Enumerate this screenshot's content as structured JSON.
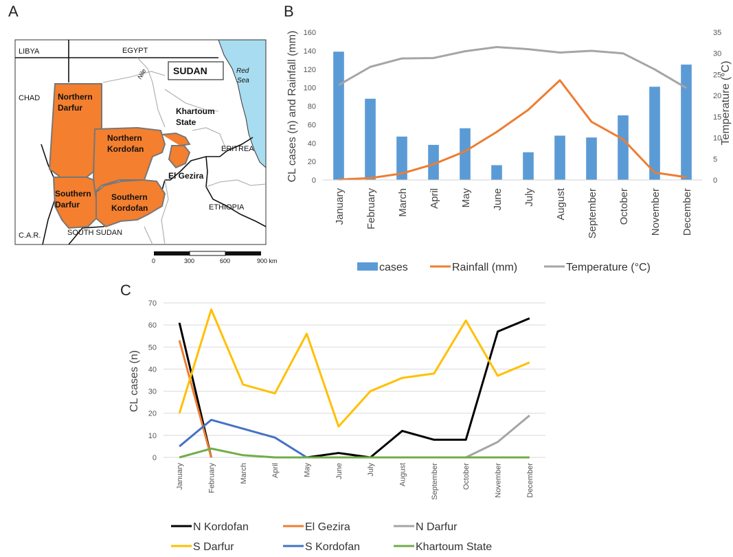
{
  "panels": {
    "a": "A",
    "b": "B",
    "c": "C"
  },
  "map": {
    "countries": {
      "libya": "LIBYA",
      "egypt": "EGYPT",
      "chad": "CHAD",
      "eritrea": "ERITREA",
      "ethiopia": "ETHIOPIA",
      "car": "C.A.R.",
      "south_sudan": "SOUTH SUDAN"
    },
    "sudan_label": "SUDAN",
    "red_sea_1": "Red",
    "red_sea_2": "Sea",
    "nile": "Nile",
    "regions": {
      "n_darfur_1": "Northern",
      "n_darfur_2": "Darfur",
      "n_kordofan_1": "Northern",
      "n_kordofan_2": "Kordofan",
      "s_darfur_1": "Southern",
      "s_darfur_2": "Darfur",
      "s_kordofan_1": "Southern",
      "s_kordofan_2": "Kordofan",
      "khartoum_1": "Khartoum",
      "khartoum_2": "State",
      "el_gezira": "El Gezira"
    },
    "scale": {
      "t0": "0",
      "t1": "300",
      "t2": "600",
      "t3": "900 km"
    },
    "colors": {
      "region": "#f47f2e",
      "sea": "#a8dcf0"
    }
  },
  "chart_data": [
    {
      "type": "bar+line",
      "categories": [
        "January",
        "February",
        "March",
        "April",
        "May",
        "June",
        "July",
        "August",
        "September",
        "October",
        "November",
        "December"
      ],
      "series": [
        {
          "name": "cases",
          "type": "bar",
          "axis": "left",
          "color": "#5b9bd5",
          "values": [
            139,
            88,
            47,
            38,
            56,
            16,
            30,
            48,
            46,
            70,
            101,
            125
          ]
        },
        {
          "name": "Rainfall (mm)",
          "type": "line",
          "axis": "left",
          "color": "#ed7d31",
          "values": [
            0.5,
            2,
            7,
            17,
            31,
            52,
            76,
            108,
            63,
            44,
            8,
            3
          ]
        },
        {
          "name": "Temperature (°C)",
          "type": "line",
          "axis": "right",
          "color": "#a5a5a5",
          "values": [
            22.5,
            26.8,
            28.8,
            28.9,
            30.5,
            31.5,
            31,
            30.2,
            30.6,
            30,
            26.2,
            21.8
          ]
        }
      ],
      "ylabel": "CL cases (n) and Rainfall (mm)",
      "y2label": "Temperature (°C)",
      "ylim": [
        0,
        160
      ],
      "y2lim": [
        0,
        35
      ],
      "yticks": [
        "0",
        "20",
        "40",
        "60",
        "80",
        "100",
        "120",
        "140",
        "160"
      ],
      "y2ticks": [
        "0",
        "5",
        "10",
        "15",
        "20",
        "25",
        "30",
        "35"
      ],
      "legend": "bottom",
      "grid": false
    },
    {
      "type": "line",
      "categories": [
        "January",
        "February",
        "March",
        "April",
        "May",
        "June",
        "July",
        "August",
        "September",
        "October",
        "November",
        "December"
      ],
      "series": [
        {
          "name": "N Kordofan",
          "color": "#000000",
          "values": [
            61,
            0,
            null,
            null,
            0,
            2,
            0,
            12,
            8,
            8,
            57,
            63
          ]
        },
        {
          "name": "El Gezira",
          "color": "#ed7d31",
          "values": [
            53,
            0,
            null,
            null,
            null,
            null,
            null,
            null,
            null,
            null,
            null,
            null
          ]
        },
        {
          "name": "N Darfur",
          "color": "#a5a5a5",
          "values": [
            null,
            null,
            null,
            null,
            null,
            null,
            null,
            null,
            null,
            0,
            7,
            19
          ]
        },
        {
          "name": "S Darfur",
          "color": "#ffc000",
          "values": [
            20,
            67,
            33,
            29,
            56,
            14,
            30,
            36,
            38,
            62,
            37,
            43
          ]
        },
        {
          "name": "S Kordofan",
          "color": "#4472c4",
          "values": [
            5,
            17,
            13,
            9,
            0,
            null,
            null,
            null,
            null,
            null,
            null,
            null
          ]
        },
        {
          "name": "Khartoum State",
          "color": "#70ad47",
          "values": [
            0,
            4,
            1,
            0,
            0,
            0,
            0,
            0,
            0,
            0,
            0,
            0
          ]
        }
      ],
      "ylabel": "CL cases (n)",
      "ylim": [
        0,
        70
      ],
      "yticks": [
        "0",
        "10",
        "20",
        "30",
        "40",
        "50",
        "60",
        "70"
      ],
      "legend": "bottom",
      "grid": true
    }
  ]
}
